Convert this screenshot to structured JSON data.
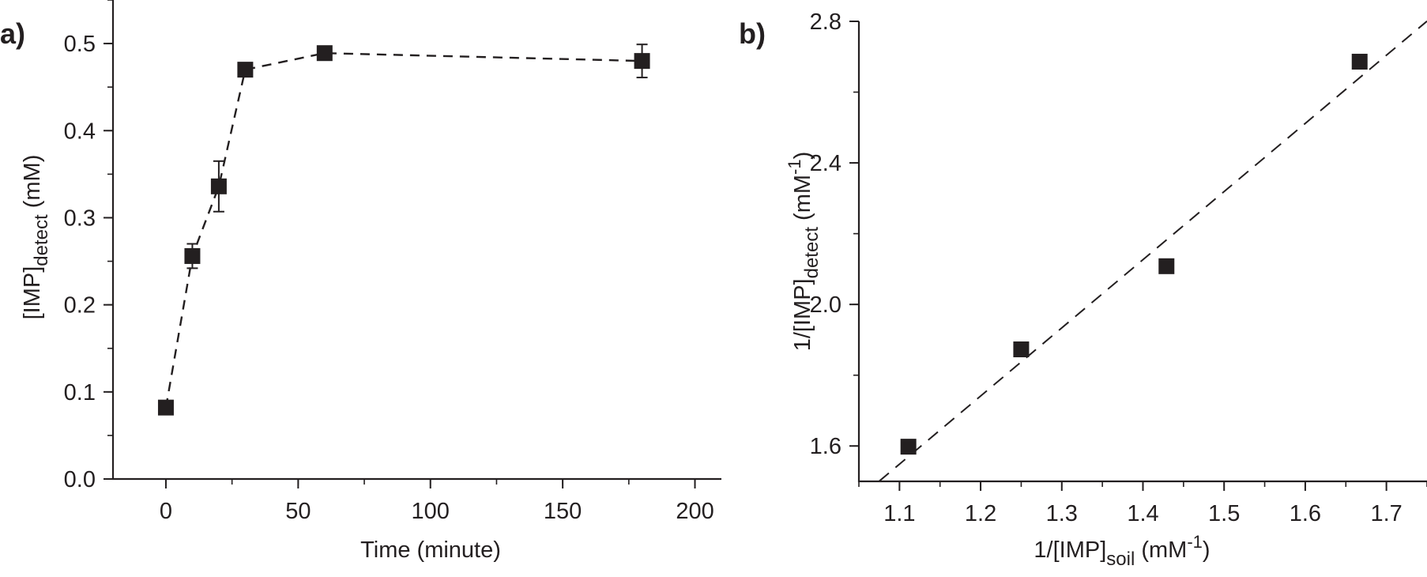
{
  "chart_data": [
    {
      "panel_label": "a)",
      "type": "line",
      "line_style": "dashed",
      "marker": "square",
      "color": "#231f20",
      "xlabel": "Time (minute)",
      "ylabel": {
        "main": "[IMP]",
        "sub": "detect",
        "tail": " (mM)"
      },
      "xlim": [
        -20,
        210
      ],
      "ylim": [
        0,
        0.55
      ],
      "xticks": [
        0,
        50,
        100,
        150,
        200
      ],
      "xtick_labels": [
        "0",
        "50",
        "100",
        "150",
        "200"
      ],
      "yticks": [
        0,
        0.1,
        0.2,
        0.3,
        0.4,
        0.5
      ],
      "ytick_labels": [
        "0.0",
        "0.1",
        "0.2",
        "0.3",
        "0.4",
        "0.5"
      ],
      "x_minor_step": 25,
      "y_minor_step": 0.05,
      "grid": false,
      "x": [
        0,
        10,
        20,
        30,
        60,
        180
      ],
      "y": [
        0.082,
        0.256,
        0.336,
        0.47,
        0.489,
        0.48
      ],
      "yerr": [
        0.004,
        0.014,
        0.029,
        0.006,
        0.007,
        0.019
      ]
    },
    {
      "panel_label": "b)",
      "type": "scatter",
      "marker": "square",
      "color": "#231f20",
      "xlabel": {
        "main": "1/[IMP]",
        "sub": "soil",
        "tail": " (mM",
        "sup": "-1",
        "close": ")"
      },
      "ylabel": {
        "main": "1/[IMP]",
        "sub": "detect",
        "tail": " (mM",
        "sup": "-1",
        "close": ")"
      },
      "xlim": [
        1.05,
        1.75
      ],
      "ylim": [
        1.5,
        2.8
      ],
      "xticks": [
        1.1,
        1.2,
        1.3,
        1.4,
        1.5,
        1.6,
        1.7
      ],
      "xtick_labels": [
        "1.1",
        "1.2",
        "1.3",
        "1.4",
        "1.5",
        "1.6",
        "1.7"
      ],
      "yticks": [
        1.6,
        2.0,
        2.4,
        2.8
      ],
      "ytick_labels": [
        "1.6",
        "2.0",
        "2.4",
        "2.8"
      ],
      "x_minor_step": 0.05,
      "y_minor_step": 0.2,
      "grid": false,
      "x": [
        1.111,
        1.25,
        1.429,
        1.667
      ],
      "y": [
        1.598,
        1.873,
        2.108,
        2.686
      ],
      "fit_line": {
        "style": "dashed",
        "slope": 1.926,
        "intercept": -0.57,
        "x_range": [
          1.075,
          1.75
        ]
      }
    }
  ]
}
